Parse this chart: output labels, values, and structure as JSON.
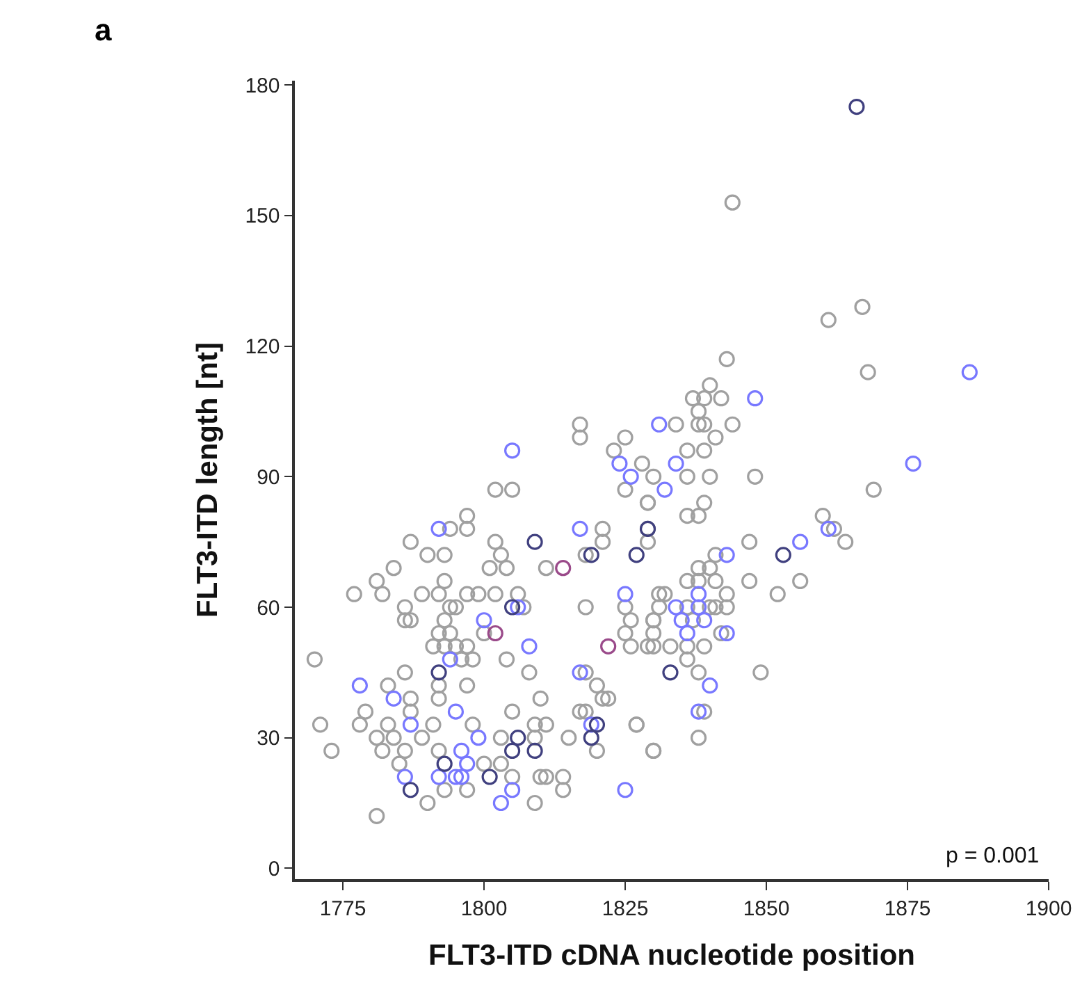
{
  "chart_data": {
    "type": "scatter",
    "xlabel": "FLT3-ITD cDNA nucleotide position",
    "ylabel": "FLT3-ITD length [nt]",
    "annotations": [
      "a",
      "p = 0.001"
    ],
    "xlim": [
      1766.5,
      1900
    ],
    "xticks": [
      1775,
      1800,
      1825,
      1850,
      1875,
      1900
    ],
    "ylim": [
      -2.5,
      181
    ],
    "yticks": [
      0,
      30,
      60,
      90,
      120,
      150,
      180
    ],
    "marker": "circle",
    "series": [
      {
        "color": "#a0a0a0",
        "x": [
          1770,
          1771,
          1773,
          1777,
          1778,
          1779,
          1781,
          1781,
          1782,
          1781,
          1782,
          1783,
          1784,
          1783,
          1784,
          1785,
          1786,
          1786,
          1786,
          1787,
          1786,
          1787,
          1787,
          1787,
          1789,
          1789,
          1790,
          1790,
          1791,
          1791,
          1792,
          1792,
          1792,
          1792,
          1792,
          1793,
          1793,
          1793,
          1793,
          1793,
          1794,
          1794,
          1794,
          1795,
          1795,
          1796,
          1797,
          1797,
          1797,
          1797,
          1797,
          1797,
          1798,
          1798,
          1799,
          1800,
          1800,
          1801,
          1802,
          1802,
          1802,
          1803,
          1804,
          1804,
          1803,
          1803,
          1805,
          1805,
          1805,
          1806,
          1807,
          1808,
          1809,
          1809,
          1809,
          1810,
          1810,
          1811,
          1811,
          1811,
          1814,
          1814,
          1815,
          1818,
          1818,
          1817,
          1818,
          1818,
          1820,
          1820,
          1821,
          1822,
          1821,
          1821,
          1825,
          1826,
          1825,
          1825,
          1826,
          1827,
          1829,
          1829,
          1829,
          1828,
          1830,
          1830,
          1830,
          1830,
          1830,
          1831,
          1817,
          1817,
          1823,
          1825,
          1844,
          1861,
          1867,
          1868,
          1843,
          1837,
          1839,
          1842,
          1840,
          1838,
          1838,
          1839,
          1844,
          1834,
          1841,
          1836,
          1839,
          1836,
          1840,
          1848,
          1869,
          1829,
          1839,
          1836,
          1838,
          1860,
          1862,
          1864,
          1847,
          1841,
          1838,
          1840,
          1836,
          1838,
          1841,
          1847,
          1856,
          1852,
          1832,
          1843,
          1831,
          1836,
          1840,
          1841,
          1843,
          1830,
          1837,
          1842,
          1829,
          1833,
          1836,
          1839,
          1836,
          1838,
          1849,
          1839,
          1827,
          1838,
          1830
        ],
        "values": [
          48,
          33,
          27,
          63,
          33,
          36,
          12,
          66,
          63,
          30,
          27,
          33,
          69,
          42,
          30,
          24,
          27,
          57,
          60,
          57,
          45,
          75,
          39,
          36,
          63,
          30,
          72,
          15,
          51,
          33,
          63,
          54,
          42,
          39,
          27,
          66,
          72,
          57,
          51,
          18,
          78,
          60,
          54,
          51,
          60,
          48,
          81,
          78,
          63,
          51,
          42,
          18,
          33,
          48,
          63,
          24,
          54,
          69,
          75,
          87,
          63,
          72,
          69,
          48,
          24,
          30,
          87,
          36,
          21,
          63,
          60,
          45,
          15,
          33,
          30,
          39,
          21,
          21,
          69,
          33,
          21,
          18,
          30,
          60,
          72,
          36,
          36,
          45,
          42,
          27,
          39,
          39,
          75,
          78,
          87,
          57,
          60,
          54,
          51,
          33,
          78,
          75,
          84,
          93,
          90,
          27,
          57,
          54,
          51,
          63,
          102,
          99,
          96,
          99,
          153,
          126,
          129,
          114,
          117,
          108,
          108,
          108,
          111,
          105,
          102,
          102,
          102,
          102,
          99,
          96,
          96,
          90,
          90,
          90,
          87,
          84,
          84,
          81,
          81,
          81,
          78,
          75,
          75,
          72,
          69,
          69,
          66,
          66,
          66,
          66,
          66,
          63,
          63,
          63,
          60,
          60,
          60,
          60,
          60,
          57,
          57,
          54,
          51,
          51,
          51,
          51,
          48,
          45,
          45,
          36,
          33,
          30,
          27
        ]
      },
      {
        "color": "#7878ff",
        "x": [
          1805,
          1824,
          1826,
          1831,
          1886,
          1848,
          1834,
          1876,
          1832,
          1861,
          1856,
          1843,
          1838,
          1834,
          1838,
          1835,
          1839,
          1836,
          1843,
          1840,
          1838,
          1792,
          1817,
          1825,
          1800,
          1808,
          1794,
          1778,
          1784,
          1787,
          1795,
          1799,
          1817,
          1819,
          1796,
          1797,
          1786,
          1792,
          1795,
          1796,
          1805,
          1803,
          1825,
          1806
        ],
        "values": [
          96,
          93,
          90,
          102,
          114,
          108,
          93,
          93,
          87,
          78,
          75,
          72,
          63,
          60,
          60,
          57,
          57,
          54,
          54,
          42,
          36,
          78,
          78,
          63,
          57,
          51,
          48,
          42,
          39,
          33,
          36,
          30,
          45,
          33,
          27,
          24,
          21,
          21,
          21,
          21,
          18,
          15,
          18,
          60
        ]
      },
      {
        "color": "#40407f",
        "x": [
          1866,
          1829,
          1853,
          1827,
          1833,
          1792,
          1793,
          1809,
          1819,
          1805,
          1806,
          1805,
          1809,
          1801,
          1820,
          1819,
          1787
        ],
        "values": [
          175,
          78,
          72,
          72,
          45,
          45,
          24,
          75,
          72,
          60,
          30,
          27,
          27,
          21,
          33,
          30,
          18
        ]
      },
      {
        "color": "#9a4a8a",
        "x": [
          1814,
          1802,
          1822
        ],
        "values": [
          69,
          54,
          51
        ]
      }
    ]
  }
}
